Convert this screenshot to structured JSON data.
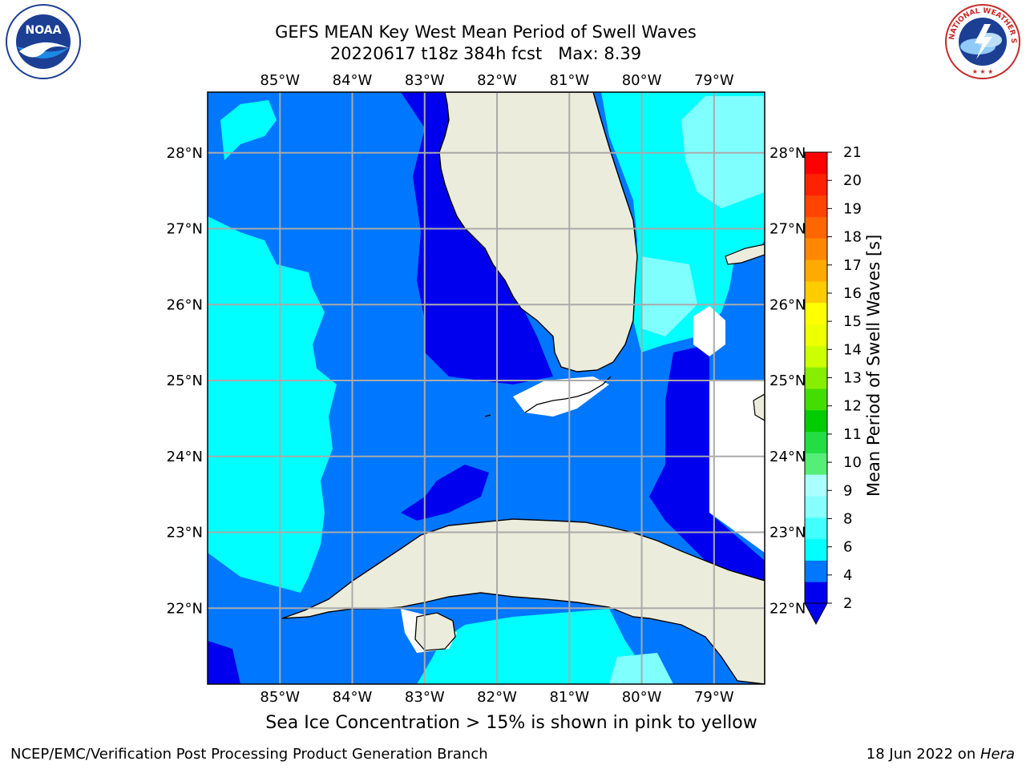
{
  "title": {
    "line1": "GEFS MEAN Key West Mean Period of Swell Waves",
    "line2": "20220617 t18z 384h fcst   Max: 8.39"
  },
  "logos": {
    "left": "noa-logo",
    "left_text": "NOAA",
    "right": "nws-logo",
    "right_text": "NATIONAL WEATHER SERVICE"
  },
  "map": {
    "lon_labels": [
      "85°W",
      "84°W",
      "83°W",
      "82°W",
      "81°W",
      "80°W",
      "79°W"
    ],
    "lat_labels": [
      "28°N",
      "27°N",
      "26°N",
      "25°N",
      "24°N",
      "23°N",
      "22°N"
    ],
    "lon_range": [
      -86,
      -78.3
    ],
    "lat_range": [
      21,
      28.8
    ],
    "grid": true
  },
  "colorbar": {
    "label": "Mean Period of Swell Waves [s]",
    "ticks": [
      "21",
      "20",
      "19",
      "18",
      "17",
      "16",
      "15",
      "14",
      "13",
      "12",
      "11",
      "10",
      "9",
      "8",
      "6",
      "4",
      "2"
    ],
    "colors": [
      "#0000ee",
      "#0077ff",
      "#00ffff",
      "#44ffff",
      "#88ffff",
      "#aaffff",
      "#55ee77",
      "#22dd44",
      "#00cc00",
      "#44dd00",
      "#88ee00",
      "#ccff00",
      "#eeff00",
      "#ffff00",
      "#ffcc00",
      "#ffaa00",
      "#ff8800",
      "#ff6600",
      "#ff4400",
      "#ff2200",
      "#ff0000"
    ],
    "extend": "min",
    "extend_color": "#0000ee"
  },
  "colors": {
    "land": "#ececdc",
    "deep": "#0000ee",
    "mid": "#0077ff",
    "light": "#00ffff",
    "pale": "#80ffff"
  },
  "note": "Sea Ice Concentration > 15% is shown in pink to yellow",
  "footer": {
    "left": "NCEP/EMC/Verification Post Processing Product Generation Branch",
    "date": "18 Jun 2022 on ",
    "machine": "Hera"
  }
}
